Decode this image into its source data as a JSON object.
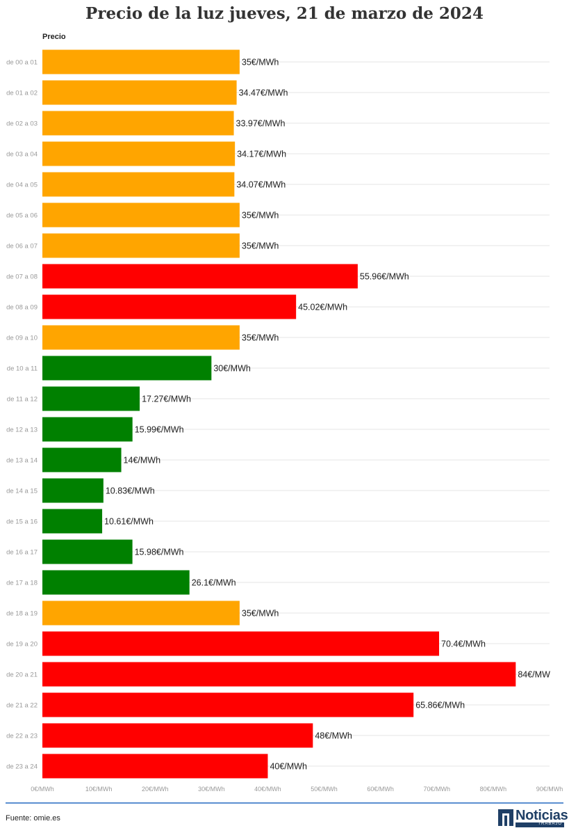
{
  "page": {
    "title": "Precio de la luz jueves, 21 de marzo de 2024",
    "column_header": "Precio",
    "source": "Fuente: omie.es"
  },
  "logo": {
    "word": "Noticias",
    "sub": "TRABAJO"
  },
  "colors": {
    "orange": "#ffa500",
    "red": "#ff0000",
    "green": "#008000",
    "grid": "#e6e6e6",
    "axis_label": "#999999"
  },
  "chart_data": {
    "type": "bar",
    "orientation": "horizontal",
    "title": "Precio de la luz jueves, 21 de marzo de 2024",
    "column_header": "Precio",
    "categories": [
      "de 00 a 01",
      "de 01 a 02",
      "de 02 a 03",
      "de 03 a 04",
      "de 04 a 05",
      "de 05 a 06",
      "de 06 a 07",
      "de 07 a 08",
      "de 08 a 09",
      "de 09 a 10",
      "de 10 a 11",
      "de 11 a 12",
      "de 12 a 13",
      "de 13 a 14",
      "de 14 a 15",
      "de 15 a 16",
      "de 16 a 17",
      "de 17 a 18",
      "de 18 a 19",
      "de 19 a 20",
      "de 20 a 21",
      "de 21 a 22",
      "de 22 a 23",
      "de 23 a 24"
    ],
    "values": [
      35,
      34.47,
      33.97,
      34.17,
      34.07,
      35,
      35,
      55.96,
      45.02,
      35,
      30,
      17.27,
      15.99,
      14,
      10.83,
      10.61,
      15.98,
      26.1,
      35,
      70.4,
      84,
      65.86,
      48,
      40
    ],
    "value_labels": [
      "35€/MWh",
      "34.47€/MWh",
      "33.97€/MWh",
      "34.17€/MWh",
      "34.07€/MWh",
      "35€/MWh",
      "35€/MWh",
      "55.96€/MWh",
      "45.02€/MWh",
      "35€/MWh",
      "30€/MWh",
      "17.27€/MWh",
      "15.99€/MWh",
      "14€/MWh",
      "10.83€/MWh",
      "10.61€/MWh",
      "15.98€/MWh",
      "26.1€/MWh",
      "35€/MWh",
      "70.4€/MWh",
      "84€/MW",
      "65.86€/MWh",
      "48€/MWh",
      "40€/MWh"
    ],
    "bar_colors": [
      "orange",
      "orange",
      "orange",
      "orange",
      "orange",
      "orange",
      "orange",
      "red",
      "red",
      "orange",
      "green",
      "green",
      "green",
      "green",
      "green",
      "green",
      "green",
      "green",
      "orange",
      "red",
      "red",
      "red",
      "red",
      "red"
    ],
    "xlim": [
      0,
      90
    ],
    "xticks": [
      0,
      10,
      20,
      30,
      40,
      50,
      60,
      70,
      80,
      90
    ],
    "xtick_labels": [
      "0€/MWh",
      "10€/MWh",
      "20€/MWh",
      "30€/MWh",
      "40€/MWh",
      "50€/MWh",
      "60€/MWh",
      "70€/MWh",
      "80€/MWh",
      "90€/MWh"
    ],
    "grid": true
  }
}
